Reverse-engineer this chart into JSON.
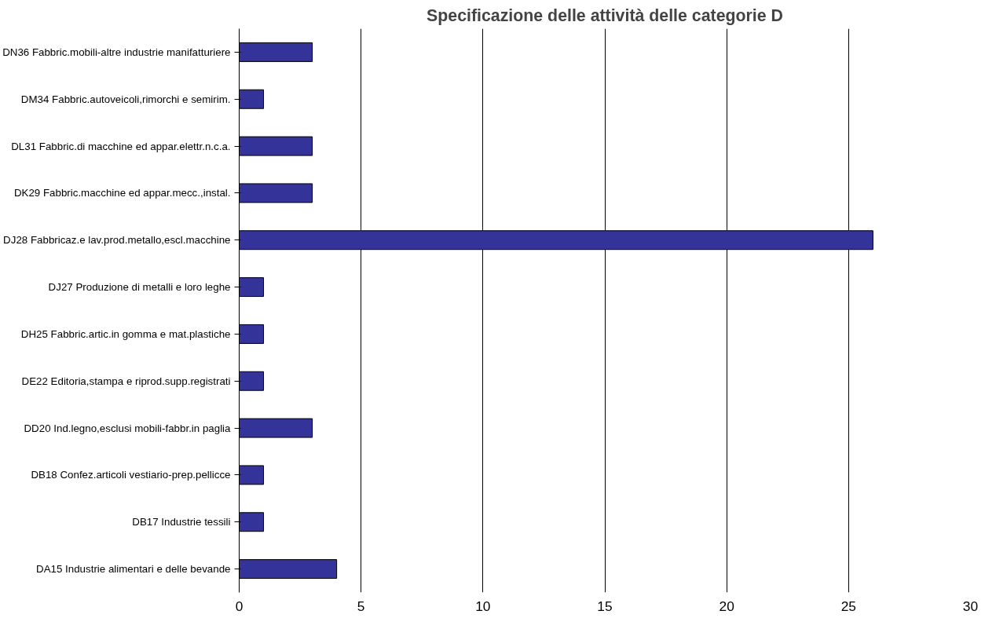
{
  "chart_data": {
    "type": "bar",
    "orientation": "horizontal",
    "title": "Specificazione delle attività delle categorie D",
    "categories": [
      "DN36 Fabbric.mobili-altre industrie manifatturiere",
      "DM34 Fabbric.autoveicoli,rimorchi e semirim.",
      "DL31 Fabbric.di macchine ed appar.elettr.n.c.a.",
      "DK29 Fabbric.macchine ed appar.mecc.,instal.",
      "DJ28 Fabbricaz.e lav.prod.metallo,escl.macchine",
      "DJ27 Produzione di metalli e loro leghe",
      "DH25 Fabbric.artic.in gomma e mat.plastiche",
      "DE22 Editoria,stampa e riprod.supp.registrati",
      "DD20 Ind.legno,esclusi mobili-fabbr.in paglia",
      "DB18 Confez.articoli vestiario-prep.pellicce",
      "DB17 Industrie tessili",
      "DA15 Industrie alimentari e delle bevande"
    ],
    "values": [
      3,
      1,
      3,
      3,
      26,
      1,
      1,
      1,
      3,
      1,
      1,
      4
    ],
    "color": "#333399",
    "xlim": [
      0,
      30
    ],
    "xticks": [
      0,
      5,
      10,
      15,
      20,
      25,
      30
    ],
    "grid": "x"
  }
}
